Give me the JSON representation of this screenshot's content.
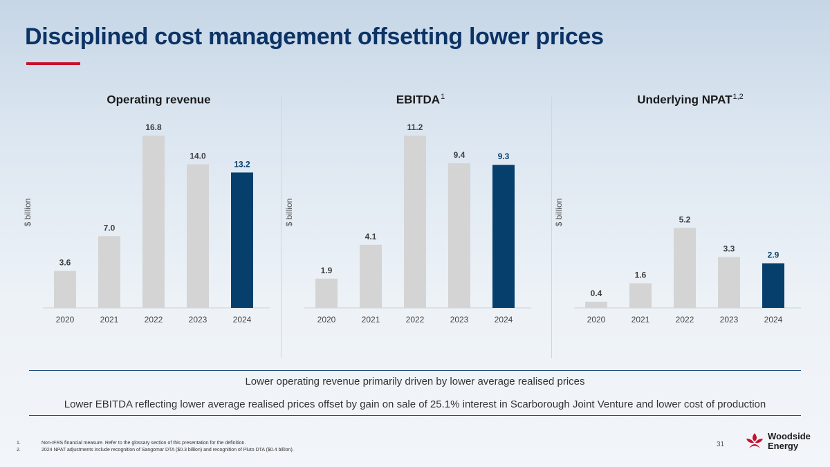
{
  "title": "Disciplined cost management offsetting lower prices",
  "colors": {
    "bar": "#d4d4d4",
    "highlight": "#063f6c",
    "title": "#0c3366",
    "accent": "#c8102e"
  },
  "chart_data": [
    {
      "type": "bar",
      "title": "Operating revenue",
      "superscript": "",
      "ylabel": "$ billion",
      "categories": [
        "2020",
        "2021",
        "2022",
        "2023",
        "2024"
      ],
      "values": [
        3.6,
        7.0,
        16.8,
        14.0,
        13.2
      ],
      "value_labels": [
        "3.6",
        "7.0",
        "16.8",
        "14.0",
        "13.2"
      ],
      "highlight_index": 4,
      "ylim": [
        0,
        16.8
      ]
    },
    {
      "type": "bar",
      "title": "EBITDA",
      "superscript": "1",
      "ylabel": "$ billion",
      "categories": [
        "2020",
        "2021",
        "2022",
        "2023",
        "2024"
      ],
      "values": [
        1.9,
        4.1,
        11.2,
        9.4,
        9.3
      ],
      "value_labels": [
        "1.9",
        "4.1",
        "11.2",
        "9.4",
        "9.3"
      ],
      "highlight_index": 4,
      "ylim": [
        0,
        11.2
      ]
    },
    {
      "type": "bar",
      "title": "Underlying NPAT",
      "superscript": "1,2",
      "ylabel": "$ billion",
      "categories": [
        "2020",
        "2021",
        "2022",
        "2023",
        "2024"
      ],
      "values": [
        0.4,
        1.6,
        5.2,
        3.3,
        2.9
      ],
      "value_labels": [
        "0.4",
        "1.6",
        "5.2",
        "3.3",
        "2.9"
      ],
      "highlight_index": 4,
      "ylim": [
        0,
        11.2
      ]
    }
  ],
  "notes": [
    "Lower operating revenue primarily driven by lower average realised prices",
    "Lower EBITDA reflecting lower average realised prices offset by gain on sale of 25.1% interest in Scarborough Joint Venture and lower cost of production"
  ],
  "footnotes": [
    {
      "num": "1.",
      "text": "Non-IFRS financial measure. Refer to the glossary section of this presentation for the definition."
    },
    {
      "num": "2.",
      "text": "2024 NPAT adjustments include recognition of Sangomar DTA ($0.3 billion) and recognition of Pluto DTA ($0.4 billion)."
    }
  ],
  "page_number": "31",
  "logo": {
    "line1": "Woodside",
    "line2": "Energy",
    "icon": "woodside-logo-icon"
  }
}
